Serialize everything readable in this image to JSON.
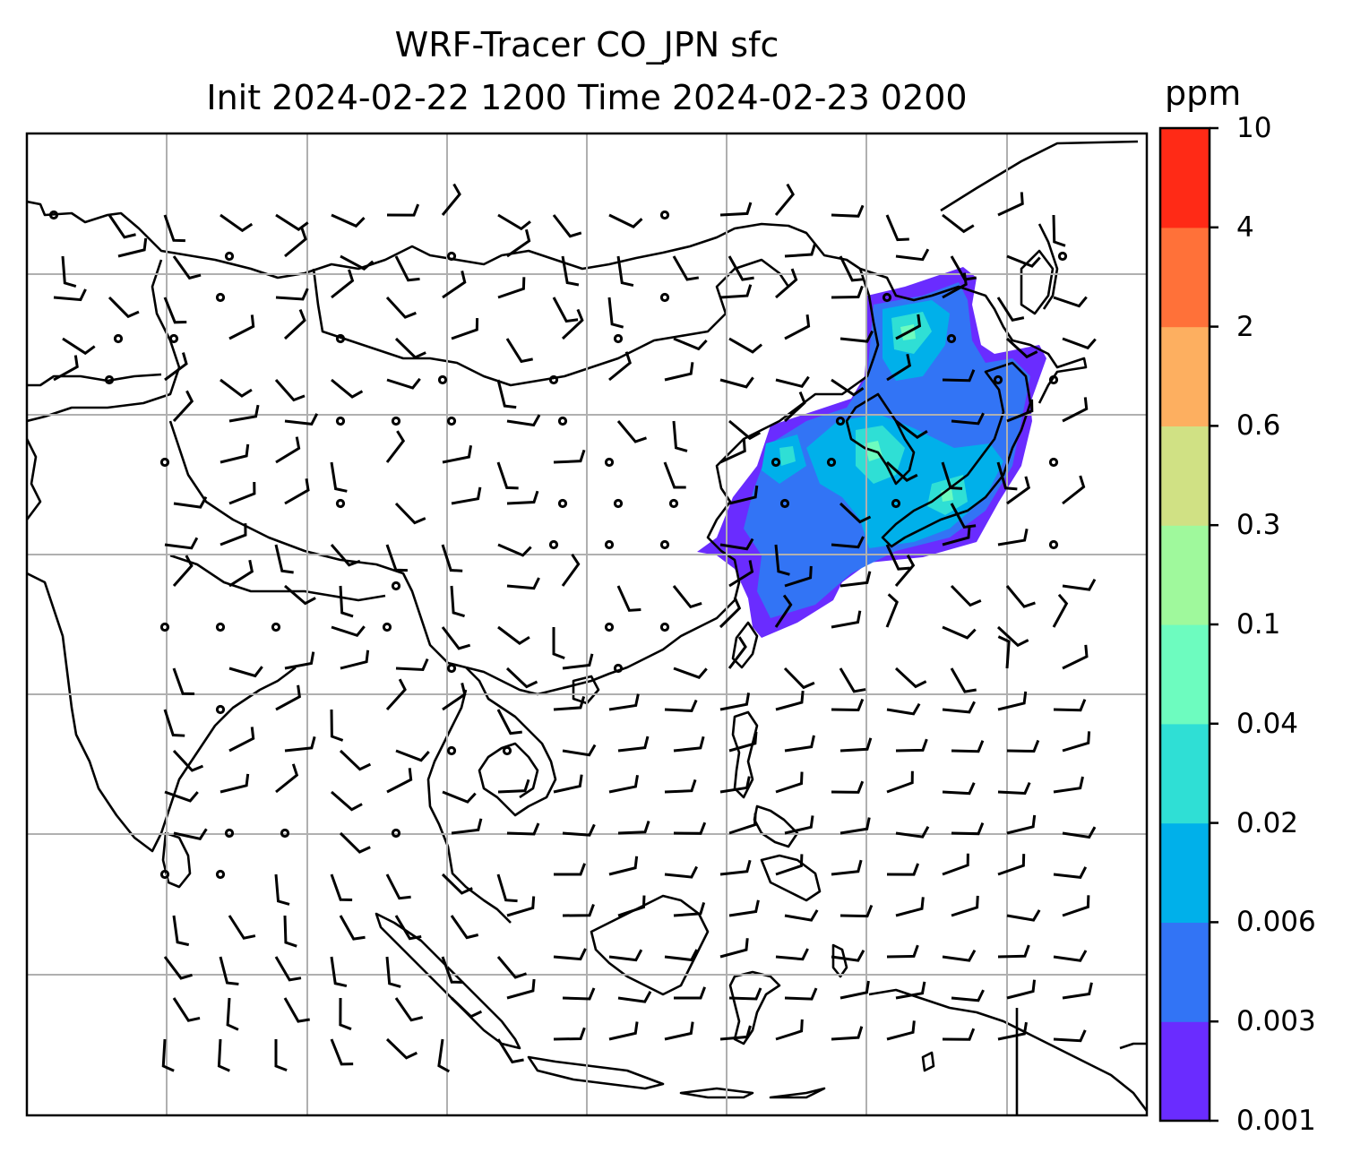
{
  "title": {
    "line1": "WRF-Tracer CO_JPN sfc",
    "line2": "Init 2024-02-22 1200 Time 2024-02-23 0200"
  },
  "colorbar": {
    "unit": "ppm",
    "ticks": [
      "0.001",
      "0.003",
      "0.006",
      "0.02",
      "0.04",
      "0.1",
      "0.3",
      "0.6",
      "2",
      "4",
      "10"
    ],
    "colors": [
      "#6a2cff",
      "#3274f5",
      "#00b0ea",
      "#2fdfd5",
      "#6dfcbf",
      "#9ff99c",
      "#d0e184",
      "#fdaf60",
      "#ff7139",
      "#ff2a16"
    ]
  },
  "map": {
    "grid": true,
    "gridlines_x": 7,
    "gridlines_y": 6,
    "field": "CO_JPN tracer concentration",
    "overlay": "surface wind barbs"
  }
}
